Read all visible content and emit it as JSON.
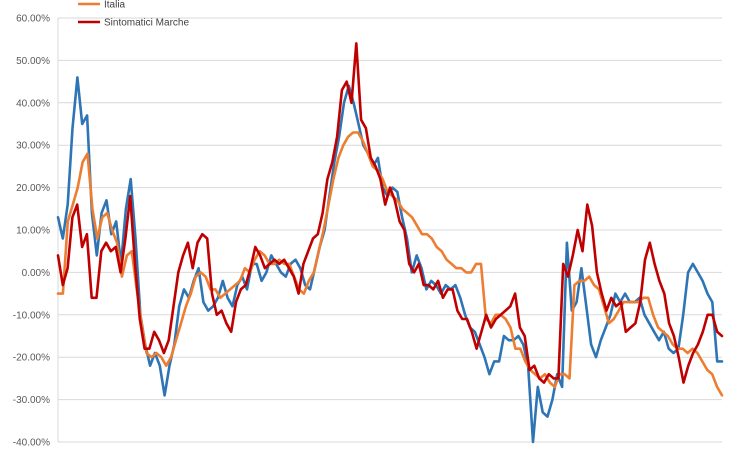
{
  "chart_data": {
    "type": "line",
    "title": "",
    "xlabel": "",
    "ylabel": "",
    "ylim": [
      -0.4,
      0.6
    ],
    "yticks": [
      -0.4,
      -0.3,
      -0.2,
      -0.1,
      0.0,
      0.1,
      0.2,
      0.3,
      0.4,
      0.5,
      0.6
    ],
    "ytick_labels": [
      "-40.00%",
      "-30.00%",
      "-20.00%",
      "-10.00%",
      "0.00%",
      "10.00%",
      "20.00%",
      "30.00%",
      "40.00%",
      "50.00%",
      "60.00%"
    ],
    "grid": true,
    "legend_position": "top-left",
    "series": [
      {
        "name": "",
        "color": "#2E75B6",
        "values": [
          0.13,
          0.08,
          0.16,
          0.34,
          0.46,
          0.35,
          0.37,
          0.14,
          0.04,
          0.14,
          0.17,
          0.09,
          0.12,
          0.02,
          0.15,
          0.22,
          0.08,
          -0.1,
          -0.17,
          -0.22,
          -0.19,
          -0.22,
          -0.29,
          -0.22,
          -0.17,
          -0.08,
          -0.04,
          -0.06,
          -0.02,
          0.01,
          -0.07,
          -0.09,
          -0.08,
          -0.06,
          -0.02,
          -0.06,
          -0.08,
          -0.03,
          -0.01,
          -0.04,
          0.02,
          0.02,
          -0.02,
          0.0,
          0.04,
          0.02,
          0.0,
          -0.01,
          0.02,
          0.03,
          0.01,
          -0.03,
          -0.04,
          0.01,
          0.06,
          0.1,
          0.18,
          0.26,
          0.32,
          0.4,
          0.44,
          0.4,
          0.35,
          0.3,
          0.28,
          0.25,
          0.27,
          0.2,
          0.18,
          0.2,
          0.19,
          0.13,
          0.08,
          0.0,
          0.04,
          0.01,
          -0.04,
          -0.02,
          -0.03,
          -0.05,
          -0.03,
          -0.04,
          -0.03,
          -0.06,
          -0.1,
          -0.13,
          -0.14,
          -0.17,
          -0.2,
          -0.24,
          -0.21,
          -0.21,
          -0.15,
          -0.16,
          -0.16,
          -0.15,
          -0.17,
          -0.22,
          -0.4,
          -0.27,
          -0.33,
          -0.34,
          -0.3,
          -0.24,
          -0.27,
          0.07,
          -0.09,
          -0.07,
          0.01,
          -0.08,
          -0.17,
          -0.2,
          -0.16,
          -0.13,
          -0.1,
          -0.05,
          -0.07,
          -0.05,
          -0.07,
          -0.07,
          -0.06,
          -0.1,
          -0.12,
          -0.14,
          -0.16,
          -0.14,
          -0.18,
          -0.19,
          -0.18,
          -0.1,
          0.0,
          0.02,
          0.0,
          -0.02,
          -0.05,
          -0.07,
          -0.21,
          -0.21
        ]
      },
      {
        "name": "Italia",
        "color": "#ED7D31",
        "values": [
          -0.05,
          -0.05,
          0.12,
          0.16,
          0.2,
          0.26,
          0.28,
          0.15,
          0.08,
          0.13,
          0.14,
          0.1,
          0.07,
          -0.01,
          0.04,
          0.05,
          -0.04,
          -0.12,
          -0.19,
          -0.2,
          -0.19,
          -0.2,
          -0.22,
          -0.2,
          -0.16,
          -0.12,
          -0.08,
          -0.05,
          -0.01,
          0.0,
          -0.01,
          -0.04,
          -0.04,
          -0.06,
          -0.05,
          -0.04,
          -0.03,
          -0.02,
          0.01,
          0.0,
          0.03,
          0.05,
          0.04,
          0.02,
          0.02,
          0.03,
          0.02,
          0.02,
          -0.01,
          -0.04,
          -0.05,
          -0.02,
          0.0,
          0.05,
          0.1,
          0.16,
          0.22,
          0.27,
          0.3,
          0.32,
          0.33,
          0.33,
          0.31,
          0.28,
          0.25,
          0.24,
          0.22,
          0.19,
          0.18,
          0.17,
          0.15,
          0.14,
          0.13,
          0.11,
          0.09,
          0.09,
          0.08,
          0.06,
          0.05,
          0.03,
          0.02,
          0.01,
          0.01,
          0.0,
          0.0,
          0.02,
          0.02,
          -0.11,
          -0.12,
          -0.1,
          -0.1,
          -0.11,
          -0.13,
          -0.18,
          -0.18,
          -0.21,
          -0.23,
          -0.24,
          -0.25,
          -0.24,
          -0.26,
          -0.27,
          -0.24,
          -0.24,
          -0.25,
          -0.03,
          -0.02,
          -0.02,
          -0.01,
          -0.03,
          -0.04,
          -0.08,
          -0.12,
          -0.11,
          -0.09,
          -0.07,
          -0.07,
          -0.07,
          -0.07,
          -0.06,
          -0.06,
          -0.1,
          -0.13,
          -0.14,
          -0.15,
          -0.17,
          -0.18,
          -0.18,
          -0.19,
          -0.18,
          -0.19,
          -0.21,
          -0.23,
          -0.24,
          -0.27,
          -0.29
        ]
      },
      {
        "name": "Sintomatici Marche",
        "color": "#C00000",
        "values": [
          0.04,
          -0.03,
          0.01,
          0.13,
          0.16,
          0.06,
          0.09,
          -0.06,
          -0.06,
          0.05,
          0.07,
          0.05,
          0.06,
          0.0,
          0.08,
          0.18,
          0.02,
          -0.11,
          -0.18,
          -0.18,
          -0.14,
          -0.16,
          -0.19,
          -0.16,
          -0.08,
          0.0,
          0.04,
          0.07,
          0.01,
          0.07,
          0.09,
          0.08,
          -0.05,
          -0.1,
          -0.09,
          -0.12,
          -0.14,
          -0.07,
          -0.04,
          -0.03,
          0.01,
          0.06,
          0.04,
          0.01,
          0.02,
          0.03,
          0.02,
          0.03,
          0.01,
          -0.01,
          -0.05,
          0.02,
          0.05,
          0.08,
          0.09,
          0.14,
          0.22,
          0.26,
          0.32,
          0.43,
          0.45,
          0.4,
          0.54,
          0.36,
          0.34,
          0.27,
          0.25,
          0.22,
          0.16,
          0.2,
          0.17,
          0.12,
          0.1,
          0.02,
          0.0,
          0.02,
          -0.03,
          -0.03,
          -0.04,
          -0.02,
          -0.06,
          -0.04,
          -0.04,
          -0.09,
          -0.11,
          -0.11,
          -0.14,
          -0.18,
          -0.14,
          -0.1,
          -0.13,
          -0.11,
          -0.1,
          -0.09,
          -0.08,
          -0.05,
          -0.13,
          -0.15,
          -0.23,
          -0.22,
          -0.25,
          -0.26,
          -0.24,
          -0.25,
          -0.25,
          0.02,
          -0.01,
          0.04,
          0.1,
          0.05,
          0.16,
          0.11,
          0.0,
          -0.05,
          -0.09,
          -0.06,
          -0.08,
          -0.07,
          -0.14,
          -0.13,
          -0.12,
          -0.07,
          0.03,
          0.07,
          0.02,
          -0.02,
          -0.05,
          -0.12,
          -0.15,
          -0.2,
          -0.26,
          -0.22,
          -0.19,
          -0.17,
          -0.14,
          -0.1,
          -0.1,
          -0.14,
          -0.15
        ]
      }
    ]
  }
}
